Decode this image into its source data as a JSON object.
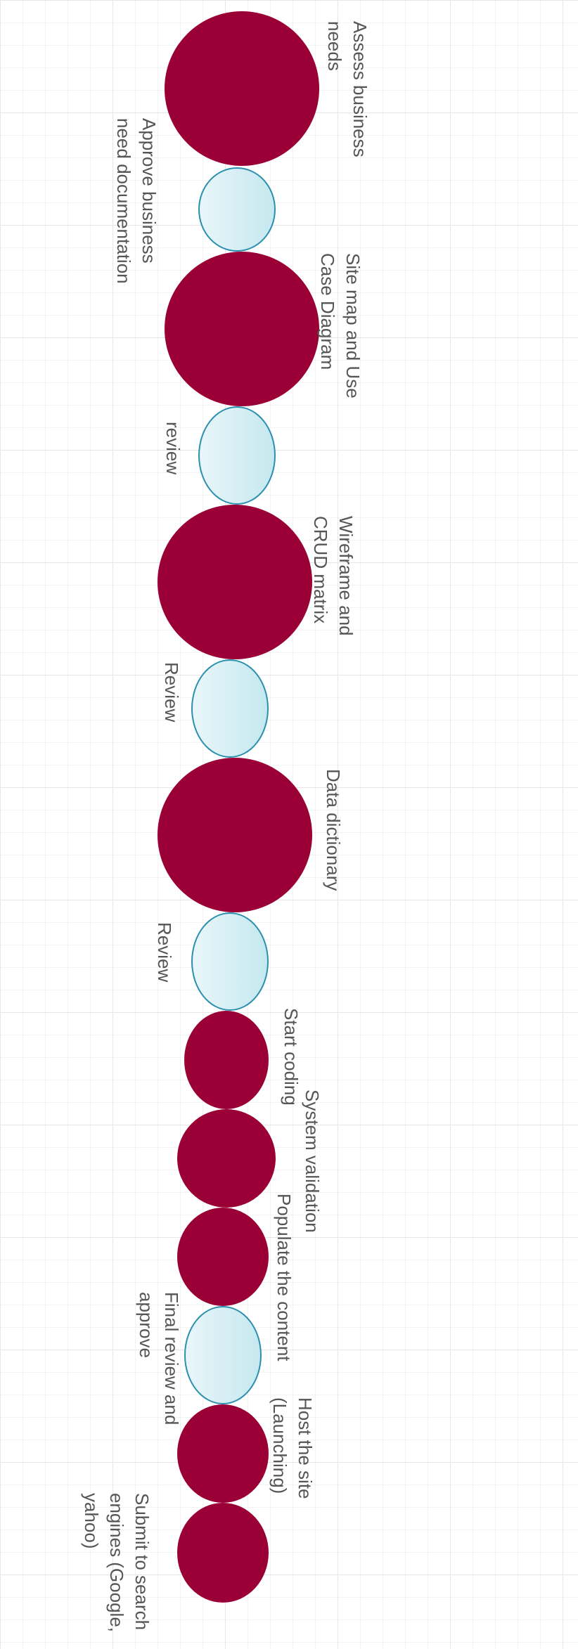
{
  "diagram": {
    "colors": {
      "milestone_fill": "#9a0036",
      "review_fill": "#d6eff4",
      "review_border": "#2b8fae",
      "label_text": "#555555"
    },
    "steps": [
      {
        "name": "assess-business-needs",
        "kind": "milestone",
        "label_lines": [
          "Assess business",
          "needs"
        ]
      },
      {
        "name": "approve-business-need-documentation",
        "kind": "review",
        "label_lines": [
          "Approve business",
          "need documentation"
        ]
      },
      {
        "name": "site-map-and-use-case-diagram",
        "kind": "milestone",
        "label_lines": [
          "Site map and Use",
          "Case Diagram"
        ]
      },
      {
        "name": "review-1",
        "kind": "review",
        "label_lines": [
          "review"
        ]
      },
      {
        "name": "wireframe-and-crud-matrix",
        "kind": "milestone",
        "label_lines": [
          "Wireframe and",
          "CRUD matrix"
        ]
      },
      {
        "name": "review-2",
        "kind": "review",
        "label_lines": [
          "Review"
        ]
      },
      {
        "name": "data-dictionary",
        "kind": "milestone",
        "label_lines": [
          "Data dictionary"
        ]
      },
      {
        "name": "review-3",
        "kind": "review",
        "label_lines": [
          "Review"
        ]
      },
      {
        "name": "start-coding",
        "kind": "milestone",
        "label_lines": [
          "Start coding"
        ]
      },
      {
        "name": "system-validation",
        "kind": "milestone",
        "label_lines": [
          "System validation"
        ]
      },
      {
        "name": "populate-the-content",
        "kind": "milestone",
        "label_lines": [
          "Populate the content"
        ]
      },
      {
        "name": "final-review-and-approve",
        "kind": "review",
        "label_lines": [
          "Final review and",
          "approve"
        ]
      },
      {
        "name": "host-the-site",
        "kind": "milestone",
        "label_lines": [
          "Host the site",
          "(Launching)"
        ]
      },
      {
        "name": "submit-to-search-engines",
        "kind": "milestone",
        "label_lines": [
          "Submit to search",
          "engines (Google,",
          "yahoo)"
        ]
      }
    ]
  }
}
